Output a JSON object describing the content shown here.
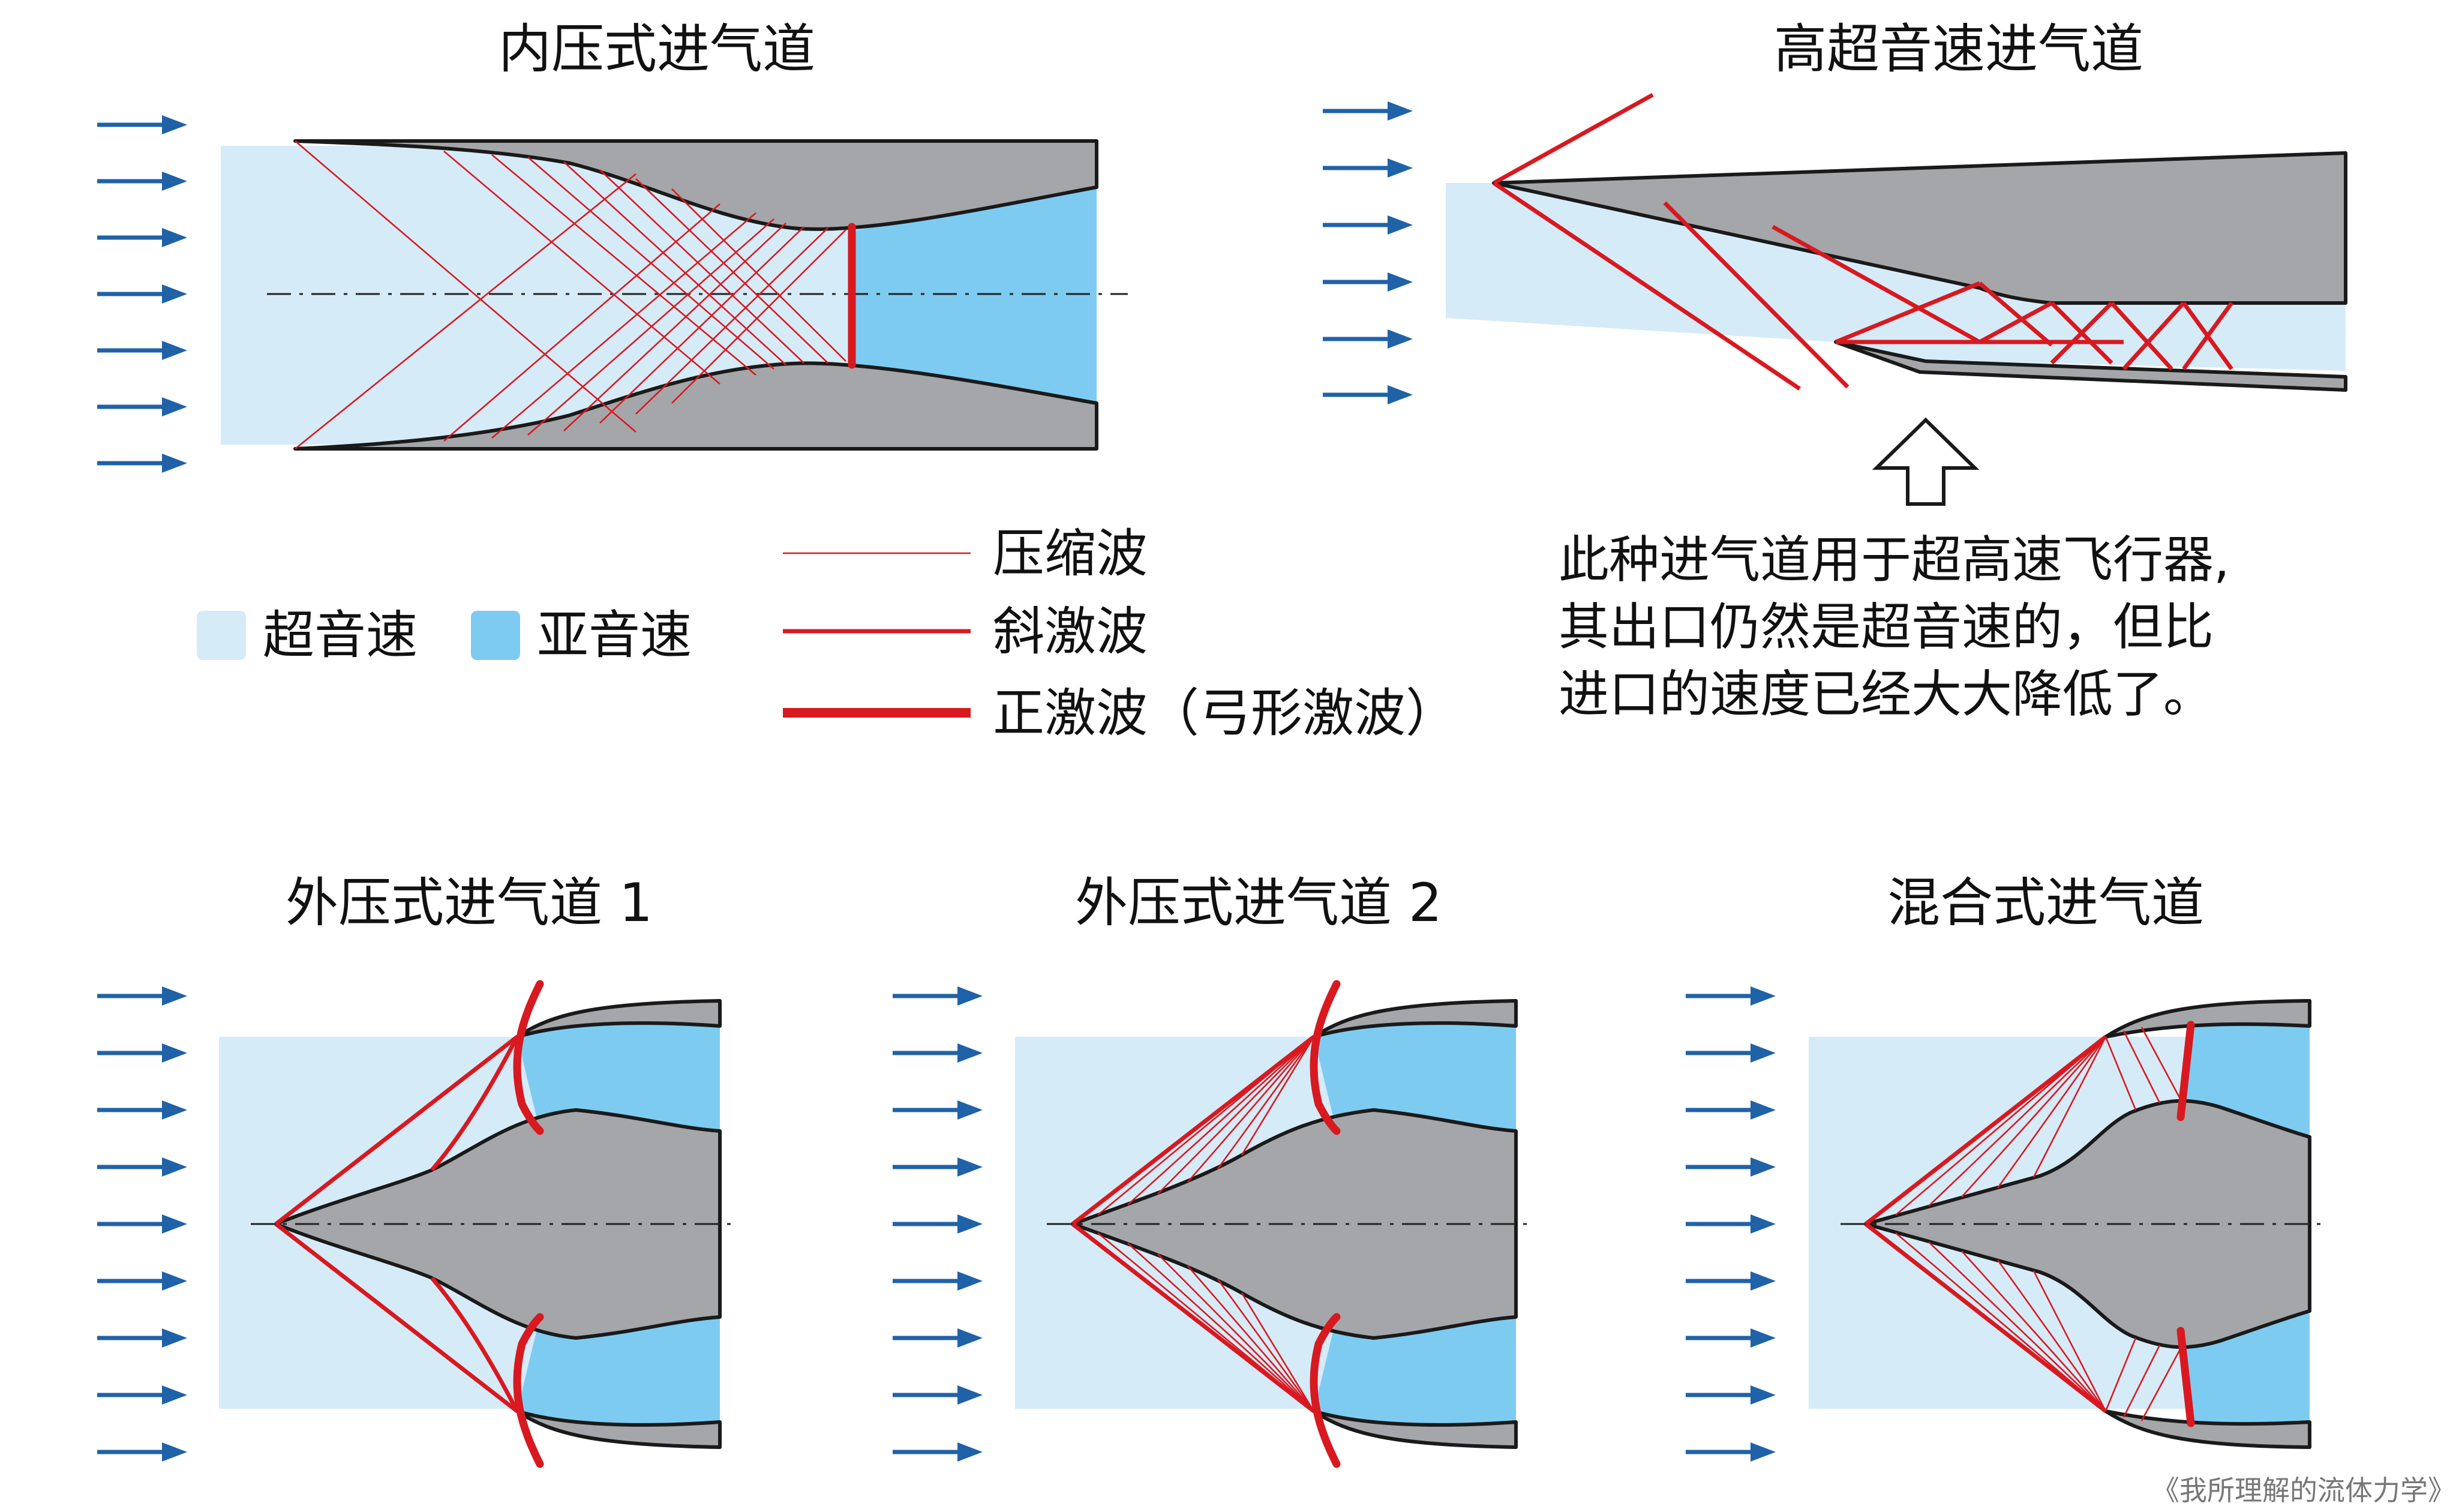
{
  "titles": {
    "internal": "内压式进气道",
    "hypersonic": "高超音速进气道",
    "external1": "外压式进气道 1",
    "external2": "外压式进气道 2",
    "mixed": "混合式进气道"
  },
  "legend": {
    "supersonic": "超音速",
    "subsonic": "亚音速",
    "compression_wave": "压缩波",
    "oblique_shock": "斜激波",
    "normal_shock": "正激波（弓形激波）",
    "supersonic_color": "#d6ebf8",
    "subsonic_color": "#7ecbf1",
    "shock_color": "#d81920"
  },
  "note": {
    "line1": "此种进气道用于超高速飞行器,",
    "line2": "其出口仍然是超音速的，但比",
    "line3": "进口的速度已经大大降低了。"
  },
  "credit": "《我所理解的流体力学》",
  "colors": {
    "duct": "#a5a6a9",
    "flow_arrow": "#1f62a8"
  }
}
